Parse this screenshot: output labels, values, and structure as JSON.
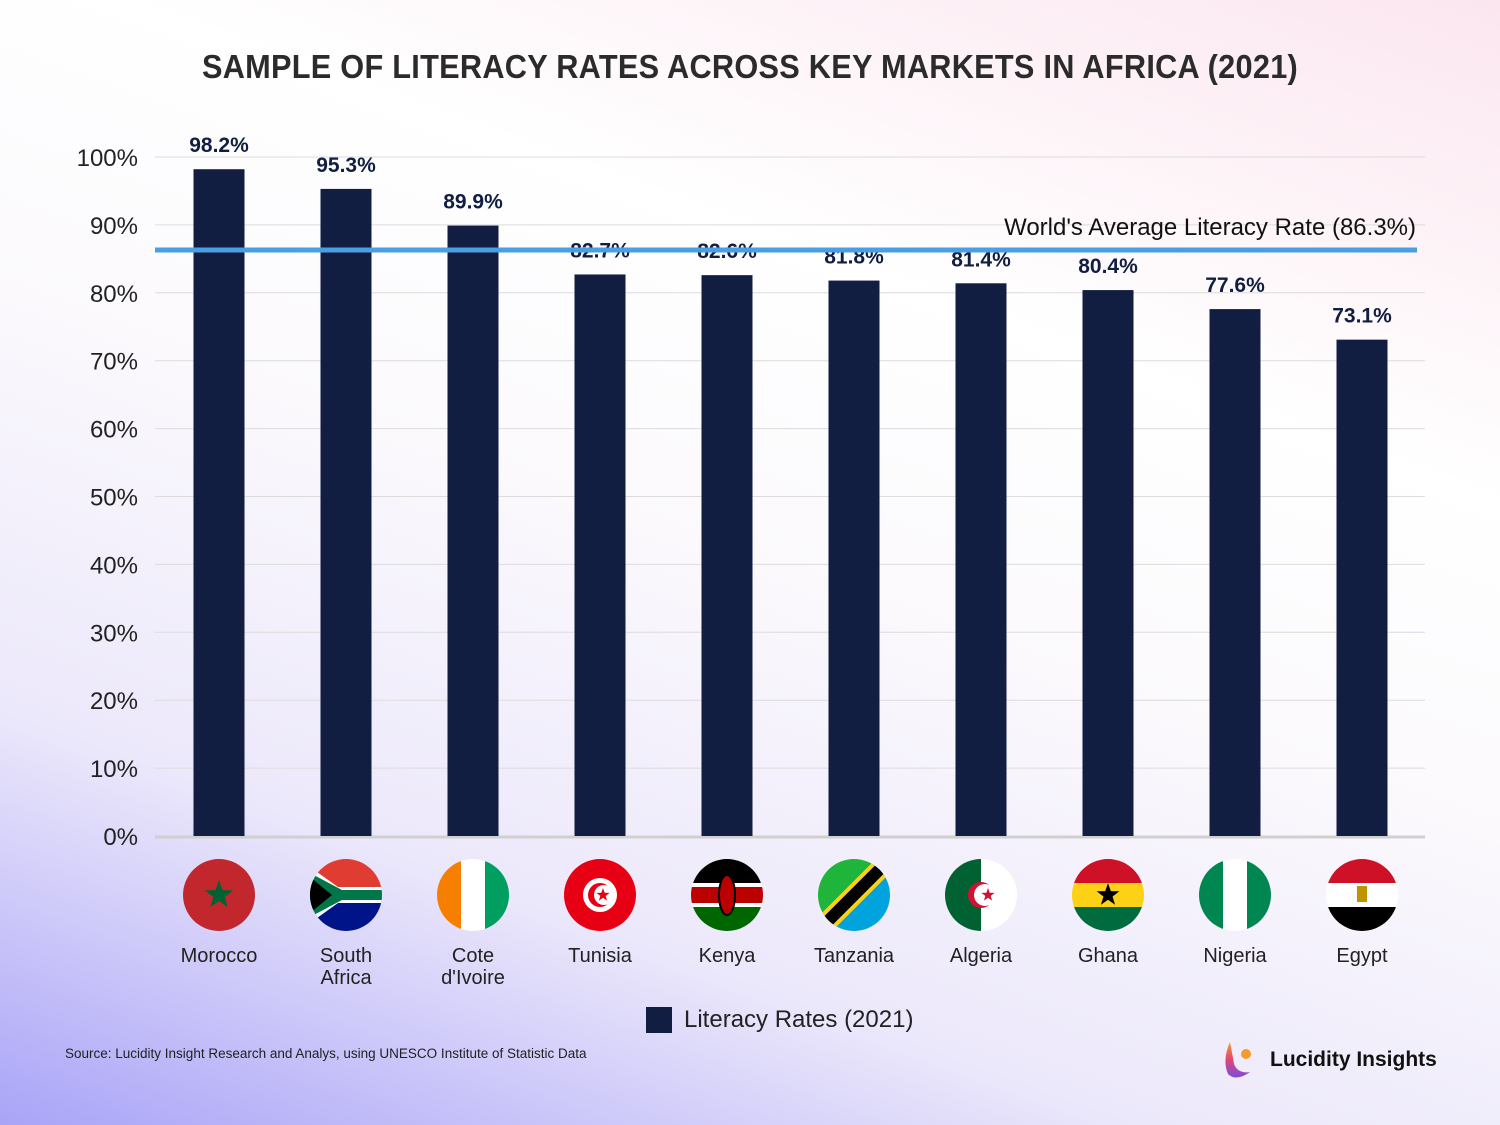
{
  "chart_data": {
    "type": "bar",
    "title": "SAMPLE OF LITERACY RATES ACROSS KEY MARKETS IN AFRICA (2021)",
    "categories": [
      "Morocco",
      "South Africa",
      "Cote d'Ivoire",
      "Tunisia",
      "Kenya",
      "Tanzania",
      "Algeria",
      "Ghana",
      "Nigeria",
      "Egypt"
    ],
    "category_lines": [
      [
        "Morocco"
      ],
      [
        "South",
        "Africa"
      ],
      [
        "Cote",
        "d'Ivoire"
      ],
      [
        "Tunisia"
      ],
      [
        "Kenya"
      ],
      [
        "Tanzania"
      ],
      [
        "Algeria"
      ],
      [
        "Ghana"
      ],
      [
        "Nigeria"
      ],
      [
        "Egypt"
      ]
    ],
    "flag_icons": [
      "morocco-flag-icon",
      "south-africa-flag-icon",
      "cote-divoire-flag-icon",
      "tunisia-flag-icon",
      "kenya-flag-icon",
      "tanzania-flag-icon",
      "algeria-flag-icon",
      "ghana-flag-icon",
      "nigeria-flag-icon",
      "egypt-flag-icon"
    ],
    "series": [
      {
        "name": "Literacy Rates (2021)",
        "values": [
          98.2,
          95.3,
          89.9,
          82.7,
          82.6,
          81.8,
          81.4,
          80.4,
          77.6,
          73.1
        ],
        "color": "#111e42"
      }
    ],
    "data_labels": [
      "98.2%",
      "95.3%",
      "89.9%",
      "82.7%",
      "82.6%",
      "81.8%",
      "81.4%",
      "80.4%",
      "77.6%",
      "73.1%"
    ],
    "ylim": [
      0,
      100
    ],
    "yticks": [
      "0%",
      "10%",
      "20%",
      "30%",
      "40%",
      "50%",
      "60%",
      "70%",
      "80%",
      "90%",
      "100%"
    ],
    "grid": true,
    "reference_line": {
      "value": 86.3,
      "label": "World's Average Literacy Rate (86.3%)",
      "color": "#4a9ee3"
    },
    "legend": {
      "position": "bottom",
      "label": "Literacy Rates (2021)"
    }
  },
  "source": "Source: Lucidity Insight Research and Analys, using UNESCO Institute of Statistic Data",
  "brand": "Lucidity Insights"
}
